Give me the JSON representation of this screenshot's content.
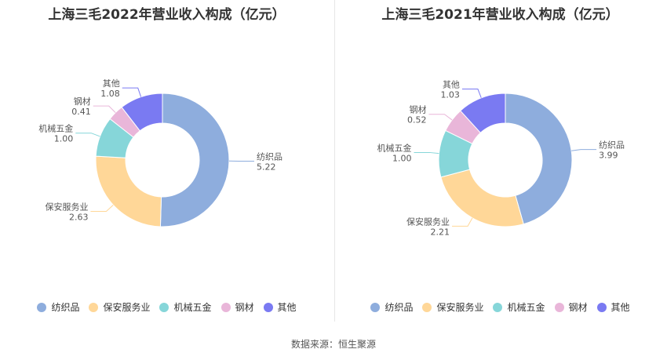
{
  "colors": [
    "#8EADDD",
    "#FFD798",
    "#86D6D9",
    "#E9B6D9",
    "#7A7AF2"
  ],
  "source": "数据来源：恒生聚源",
  "chart_data": [
    {
      "type": "pie",
      "title": "上海三毛2022年营业收入构成（亿元）",
      "categories": [
        "纺织品",
        "保安服务业",
        "机械五金",
        "钢材",
        "其他"
      ],
      "values": [
        5.22,
        2.63,
        1.0,
        0.41,
        1.08
      ],
      "value_labels": [
        "5.22",
        "2.63",
        "1.00",
        "0.41",
        "1.08"
      ],
      "legend_position": "bottom"
    },
    {
      "type": "pie",
      "title": "上海三毛2021年营业收入构成（亿元）",
      "categories": [
        "纺织品",
        "保安服务业",
        "机械五金",
        "钢材",
        "其他"
      ],
      "values": [
        3.99,
        2.21,
        1.0,
        0.52,
        1.03
      ],
      "value_labels": [
        "3.99",
        "2.21",
        "1.00",
        "0.52",
        "1.03"
      ],
      "legend_position": "bottom"
    }
  ]
}
